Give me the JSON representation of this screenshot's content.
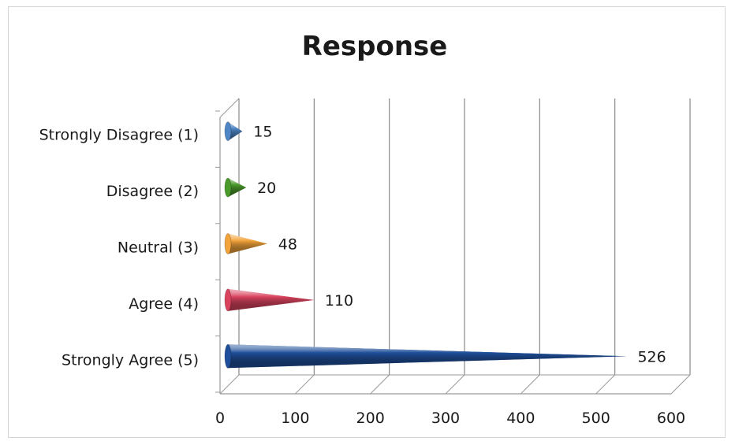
{
  "chart_data": {
    "type": "bar",
    "orientation": "horizontal",
    "style": "3d-cone",
    "title": "Response",
    "xlabel": "",
    "ylabel": "",
    "categories": [
      "Strongly Disagree (1)",
      "Disagree (2)",
      "Neutral (3)",
      "Agree (4)",
      "Strongly Agree (5)"
    ],
    "values": [
      15,
      20,
      48,
      110,
      526
    ],
    "xlim": [
      0,
      600
    ],
    "x_ticks": [
      "0",
      "100",
      "200",
      "300",
      "400",
      "500",
      "600"
    ],
    "data_labels": [
      "15",
      "20",
      "48",
      "110",
      "526"
    ],
    "colors": [
      "#4f86c6",
      "#4a9a2c",
      "#f2a33a",
      "#d9435e",
      "#1f4f9a"
    ],
    "grid": true,
    "legend": "none"
  }
}
